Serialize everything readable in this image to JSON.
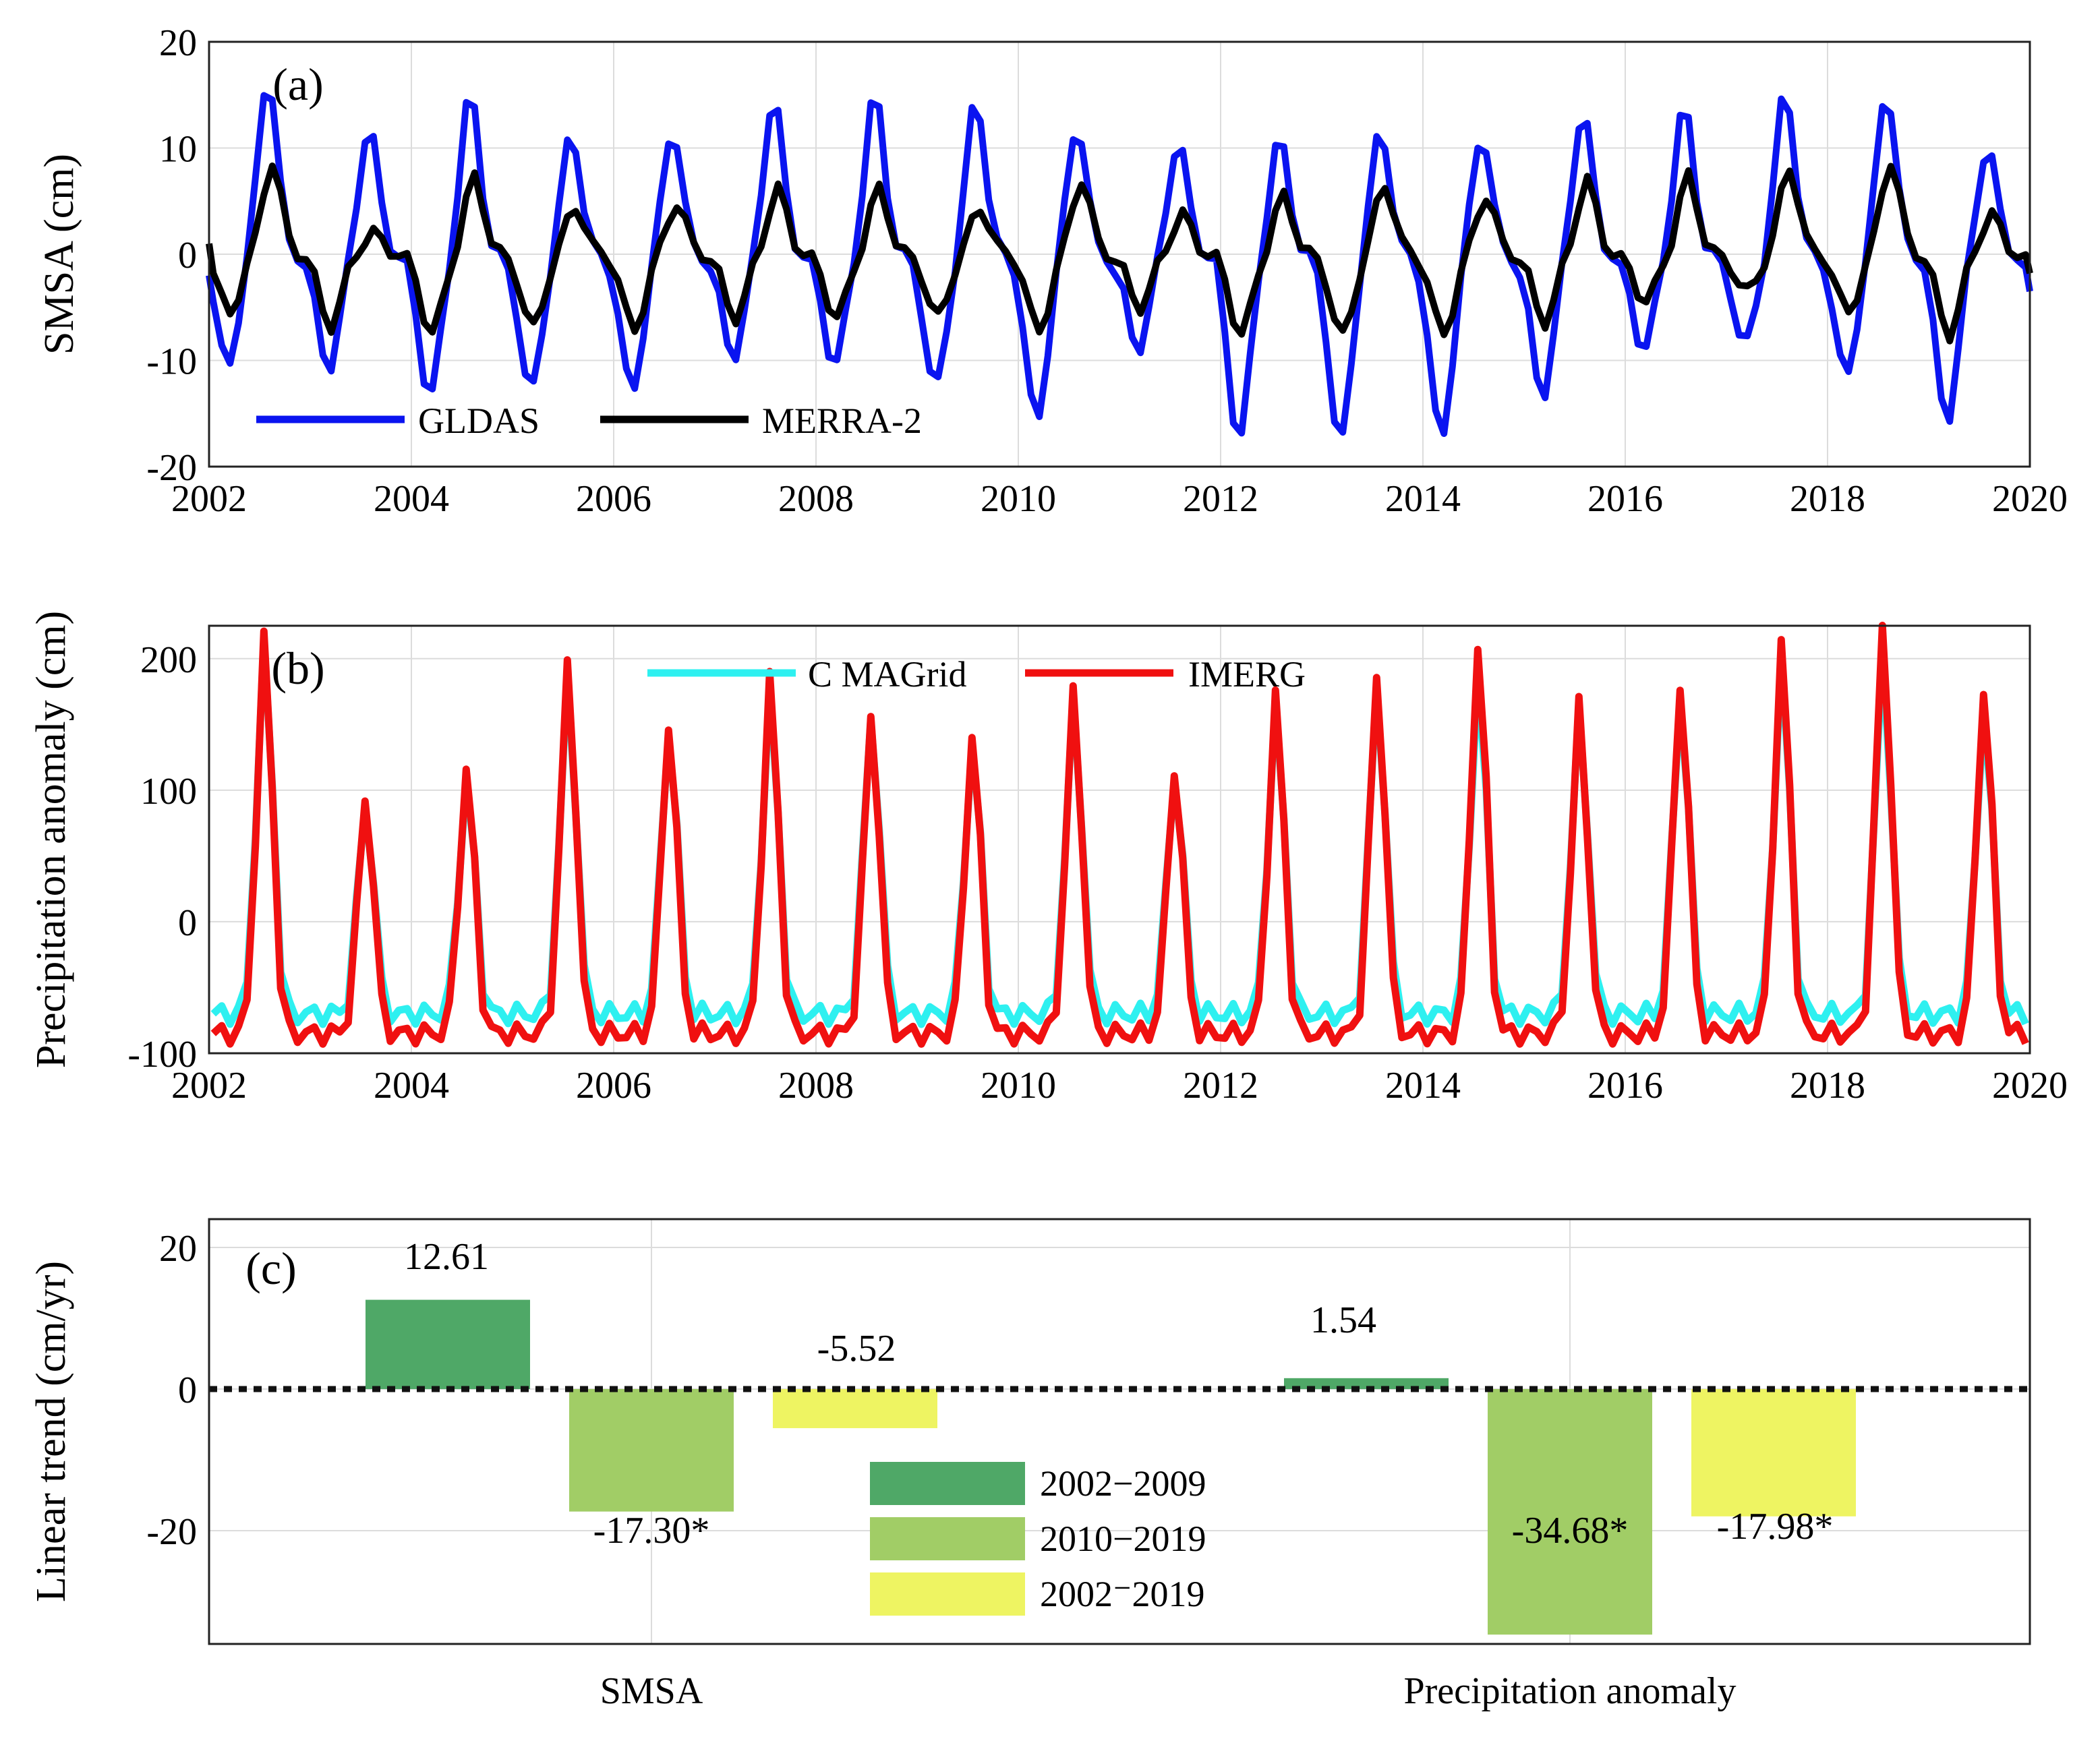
{
  "colors": {
    "gldas": "#0a14f0",
    "merra2": "#000000",
    "cmagrid": "#2ef0f0",
    "imerg": "#f01010",
    "bar_2002_2009": "#4fa867",
    "bar_2010_2019": "#a1cd66",
    "bar_2002_2019": "#eef462"
  },
  "chart_data": [
    {
      "panel": "(a)",
      "type": "line",
      "title": "",
      "xlabel": "",
      "ylabel": "SMSA (cm)",
      "xlim": [
        2002,
        2020
      ],
      "ylim": [
        -20,
        20
      ],
      "xticks": [
        2002,
        2004,
        2006,
        2008,
        2010,
        2012,
        2014,
        2016,
        2018,
        2020
      ],
      "yticks": [
        -20,
        -10,
        0,
        10,
        20
      ],
      "grid": true,
      "legend": "bottom-left, horizontal",
      "series": [
        {
          "name": "GLDAS",
          "color_key": "gldas",
          "seasonal": {
            "period": 1.0,
            "peak_phase": 0.58,
            "trough_phase": 0.18
          },
          "annual_peaks": [
            16.8,
            12.0,
            15.2,
            11.3,
            11.8,
            14.8,
            15.2,
            14.6,
            12.2,
            10.6,
            10.9,
            11.6,
            11.3,
            13.5,
            14.0,
            15.4,
            15.5,
            10.1
          ],
          "annual_troughs": [
            -10.5,
            -10.8,
            -13.3,
            -13.0,
            -13.0,
            -9.7,
            -10.4,
            -12.6,
            -15.8,
            -9.0,
            -17.5,
            -18.0,
            -17.5,
            -13.4,
            -9.0,
            -8.6,
            -11.5,
            -15.7
          ],
          "start_value": -2.0,
          "end_value": -3.5
        },
        {
          "name": "MERRA-2",
          "color_key": "merra2",
          "seasonal": {
            "period": 1.0,
            "peak_phase": 0.62,
            "trough_phase": 0.2
          },
          "annual_peaks": [
            8.7,
            2.0,
            7.3,
            4.5,
            4.8,
            6.2,
            6.2,
            4.4,
            7.0,
            3.8,
            5.5,
            6.6,
            5.5,
            7.0,
            7.4,
            8.2,
            8.8,
            3.8
          ],
          "annual_troughs": [
            -5.5,
            -6.8,
            -7.5,
            -7.0,
            -7.2,
            -6.0,
            -6.0,
            -6.0,
            -7.3,
            -5.0,
            -7.6,
            -7.8,
            -7.6,
            -6.4,
            -4.5,
            -3.6,
            -5.5,
            -7.6
          ],
          "start_value": 1.0,
          "end_value": -1.8
        }
      ]
    },
    {
      "panel": "(b)",
      "type": "line",
      "title": "",
      "xlabel": "",
      "ylabel": "Precipitation anomaly (cm)",
      "xlim": [
        2002,
        2020
      ],
      "ylim": [
        -100,
        225
      ],
      "xticks": [
        2002,
        2004,
        2006,
        2008,
        2010,
        2012,
        2014,
        2016,
        2018,
        2020
      ],
      "yticks": [
        -100,
        0,
        100,
        200
      ],
      "grid": true,
      "legend": "top-center, horizontal",
      "series": [
        {
          "name": "C MAGrid",
          "color_key": "cmagrid",
          "seasonal": {
            "period": 1.0,
            "peak_phase": 0.55
          },
          "annual_peaks": [
            210,
            92,
            110,
            185,
            150,
            175,
            158,
            138,
            168,
            115,
            165,
            180,
            190,
            160,
            175,
            198,
            205,
            165
          ],
          "baseline": -70
        },
        {
          "name": "IMERG",
          "color_key": "imerg",
          "seasonal": {
            "period": 1.0,
            "peak_phase": 0.55
          },
          "annual_peaks": [
            215,
            97,
            118,
            195,
            155,
            185,
            160,
            144,
            174,
            120,
            172,
            188,
            213,
            165,
            185,
            212,
            226,
            180
          ],
          "baseline": -85
        }
      ]
    },
    {
      "panel": "(c)",
      "type": "bar",
      "title": "",
      "xlabel": "",
      "ylabel": "Linear trend (cm/yr)",
      "categories": [
        "SMSA",
        "Precipitation anomaly"
      ],
      "ylim": [
        -36,
        24
      ],
      "yticks": [
        -20,
        0,
        20
      ],
      "grid": true,
      "legend": "lower-center, vertical",
      "series": [
        {
          "name": "2002−2009",
          "color_key": "bar_2002_2009",
          "values": [
            12.61,
            1.54
          ],
          "labels": [
            "12.61",
            "1.54"
          ]
        },
        {
          "name": "2010−2019",
          "color_key": "bar_2010_2019",
          "values": [
            -17.3,
            -34.68
          ],
          "labels": [
            "-17.30*",
            "-34.68*"
          ]
        },
        {
          "name": "2002⁻2019",
          "color_key": "bar_2002_2019",
          "values": [
            -5.52,
            -17.98
          ],
          "labels": [
            "-5.52",
            "-17.98*"
          ]
        }
      ]
    }
  ]
}
